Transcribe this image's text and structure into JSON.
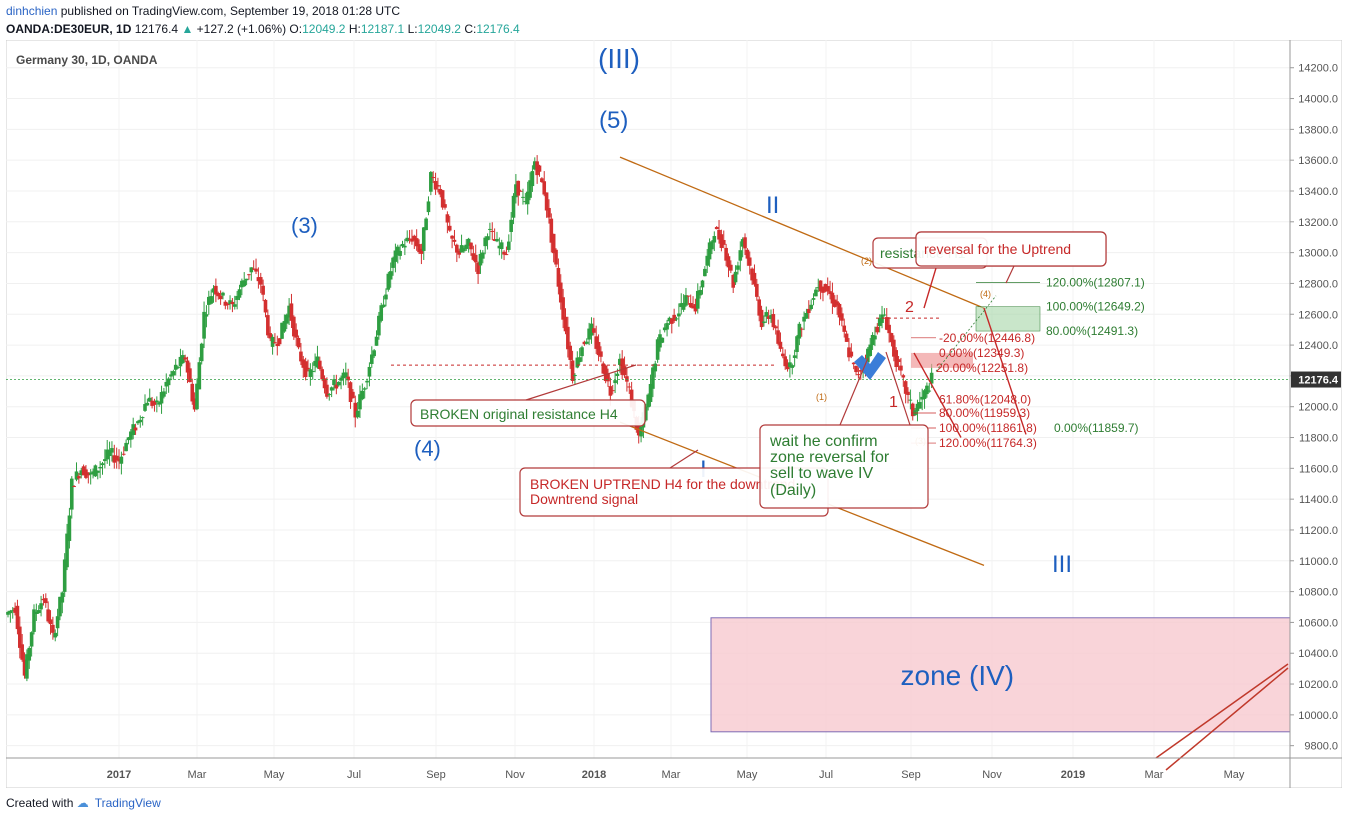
{
  "header": {
    "author": "dinhchien",
    "published": "published on TradingView.com, September 19, 2018 01:28 UTC",
    "symbol_line": "OANDA:DE30EUR, 1D",
    "last": "12176.4",
    "change": "+127.2 (+1.06%)",
    "open_label": "O:",
    "open": "12049.2",
    "high_label": "H:",
    "high": "12187.1",
    "low_label": "L:",
    "low": "12049.2",
    "close_label": "C:",
    "close": "12176.4"
  },
  "footer": {
    "created_with": "Created with",
    "brand": "TradingView"
  },
  "colors": {
    "up": "#26a69a",
    "down": "#ef5350",
    "candle_up": "#2e9e41",
    "candle_down": "#d32f2f",
    "wave_label": "#1e5fbf",
    "trendline": "#c06a13",
    "annotation_red": "#c62828",
    "annotation_green": "#2e7d32"
  },
  "chart_data": {
    "type": "candlestick",
    "title": "Germany 30, 1D, OANDA",
    "y_ticks": [
      "14200.0",
      "14000.0",
      "13800.0",
      "13600.0",
      "13400.0",
      "13200.0",
      "13000.0",
      "12800.0",
      "12600.0",
      "12400.0",
      "12200.0",
      "12000.0",
      "11800.0",
      "11600.0",
      "11400.0",
      "11200.0",
      "11000.0",
      "10800.0",
      "10600.0",
      "10400.0",
      "10200.0",
      "10000.0",
      "9800.0"
    ],
    "ylim": [
      9720,
      14380
    ],
    "x_ticks": [
      "2017",
      "Mar",
      "May",
      "Jul",
      "Sep",
      "Nov",
      "2018",
      "Mar",
      "May",
      "Jul",
      "Sep",
      "Nov",
      "2019",
      "Mar",
      "May"
    ],
    "x_tick_bold": [
      true,
      false,
      false,
      false,
      false,
      false,
      true,
      false,
      false,
      false,
      false,
      false,
      true,
      false,
      false
    ],
    "last_price": "12176.4",
    "price_path": [
      [
        0,
        10650
      ],
      [
        2,
        10700
      ],
      [
        4,
        10250
      ],
      [
        6,
        10650
      ],
      [
        8,
        10760
      ],
      [
        10,
        10500
      ],
      [
        12,
        10800
      ],
      [
        14,
        11500
      ],
      [
        16,
        11600
      ],
      [
        18,
        11550
      ],
      [
        20,
        11620
      ],
      [
        22,
        11700
      ],
      [
        24,
        11650
      ],
      [
        26,
        11800
      ],
      [
        28,
        11900
      ],
      [
        30,
        12050
      ],
      [
        32,
        12000
      ],
      [
        34,
        12150
      ],
      [
        36,
        12250
      ],
      [
        38,
        12320
      ],
      [
        40,
        11980
      ],
      [
        42,
        12600
      ],
      [
        44,
        12780
      ],
      [
        46,
        12700
      ],
      [
        48,
        12650
      ],
      [
        50,
        12800
      ],
      [
        52,
        12900
      ],
      [
        54,
        12800
      ],
      [
        56,
        12400
      ],
      [
        58,
        12450
      ],
      [
        60,
        12650
      ],
      [
        62,
        12350
      ],
      [
        64,
        12200
      ],
      [
        66,
        12300
      ],
      [
        68,
        12100
      ],
      [
        70,
        12150
      ],
      [
        72,
        12200
      ],
      [
        74,
        11950
      ],
      [
        76,
        12150
      ],
      [
        78,
        12400
      ],
      [
        80,
        12700
      ],
      [
        82,
        12950
      ],
      [
        84,
        13050
      ],
      [
        86,
        13100
      ],
      [
        88,
        13000
      ],
      [
        90,
        13500
      ],
      [
        92,
        13400
      ],
      [
        94,
        13100
      ],
      [
        96,
        13000
      ],
      [
        98,
        13050
      ],
      [
        100,
        12900
      ],
      [
        102,
        13150
      ],
      [
        104,
        13050
      ],
      [
        106,
        13000
      ],
      [
        108,
        13450
      ],
      [
        110,
        13300
      ],
      [
        112,
        13596
      ],
      [
        114,
        13400
      ],
      [
        116,
        13000
      ],
      [
        118,
        12600
      ],
      [
        120,
        12200
      ],
      [
        122,
        12400
      ],
      [
        124,
        12500
      ],
      [
        126,
        12300
      ],
      [
        128,
        12100
      ],
      [
        130,
        12300
      ],
      [
        132,
        12100
      ],
      [
        134,
        11800
      ],
      [
        136,
        12050
      ],
      [
        138,
        12400
      ],
      [
        140,
        12550
      ],
      [
        142,
        12600
      ],
      [
        144,
        12700
      ],
      [
        146,
        12650
      ],
      [
        148,
        12900
      ],
      [
        150,
        13150
      ],
      [
        152,
        13050
      ],
      [
        154,
        12800
      ],
      [
        156,
        13100
      ],
      [
        158,
        12850
      ],
      [
        160,
        12550
      ],
      [
        162,
        12600
      ],
      [
        164,
        12350
      ],
      [
        166,
        12250
      ],
      [
        168,
        12500
      ],
      [
        170,
        12650
      ],
      [
        172,
        12800
      ],
      [
        174,
        12750
      ],
      [
        176,
        12650
      ],
      [
        178,
        12400
      ],
      [
        180,
        12200
      ],
      [
        182,
        12300
      ],
      [
        184,
        12500
      ],
      [
        186,
        12600
      ],
      [
        188,
        12350
      ],
      [
        190,
        12150
      ],
      [
        192,
        11960
      ],
      [
        194,
        12050
      ],
      [
        196,
        12176
      ]
    ],
    "wave_labels": [
      {
        "text": "(III)",
        "x": 113,
        "y": 14300,
        "size": 28
      },
      {
        "text": "(5)",
        "x": 113,
        "y": 13900,
        "size": 24
      },
      {
        "text": "(3)",
        "x": 58,
        "y": 13200,
        "size": 22
      },
      {
        "text": "(4)",
        "x": 81,
        "y": 11600,
        "size": 22
      },
      {
        "text": "II",
        "x": 150,
        "y": 13290,
        "size": 24
      },
      {
        "text": "I",
        "x": 131,
        "y": 11620,
        "size": 24
      },
      {
        "text": "III",
        "x": 204,
        "y": 10950,
        "size": 24
      }
    ],
    "small_labels": [
      {
        "text": "(2)",
        "x": 166,
        "y": 12960,
        "color": "#c06a13"
      },
      {
        "text": "(4)",
        "x": 189,
        "y": 12730,
        "color": "#c06a13"
      },
      {
        "text": "(1)",
        "x": 157,
        "y": 12060,
        "color": "#c06a13"
      },
      {
        "text": "(3)",
        "x": 177,
        "y": 11760,
        "color": "#c06a13"
      }
    ],
    "red_labels": [
      {
        "text": "2",
        "x": 174,
        "y": 12650
      },
      {
        "text": "1",
        "x": 171,
        "y": 12020
      }
    ],
    "fib_levels": [
      {
        "text": "120.00%(12807.1)",
        "x": 200,
        "y": 12807,
        "color": "#2e7d32"
      },
      {
        "text": "100.00%(12649.2)",
        "x": 200,
        "y": 12649,
        "color": "#2e7d32"
      },
      {
        "text": "80.00%(12491.3)",
        "x": 200,
        "y": 12491,
        "color": "#2e7d32"
      },
      {
        "text": "-20.00%(12446.8)",
        "x": 180,
        "y": 12447,
        "color": "#c62828"
      },
      {
        "text": "0.00%(12349.3)",
        "x": 180,
        "y": 12349,
        "color": "#c62828"
      },
      {
        "text": "20.00%(12251.8)",
        "x": 180,
        "y": 12252,
        "color": "#c62828"
      },
      {
        "text": "61.80%(12048.0)",
        "x": 180,
        "y": 12048,
        "color": "#c62828"
      },
      {
        "text": "80.00%(11959.3)",
        "x": 180,
        "y": 11959,
        "color": "#c62828"
      },
      {
        "text": "100.00%(11861.8)",
        "x": 178,
        "y": 11862,
        "color": "#c62828"
      },
      {
        "text": "0.00%(11859.7)",
        "x": 202,
        "y": 11862,
        "color": "#2e7d32"
      },
      {
        "text": "120.00%(11764.3)",
        "x": 178,
        "y": 11764,
        "color": "#c62828"
      }
    ],
    "callouts": [
      {
        "text": "reversal for the Uptrend",
        "color": "#c62828"
      },
      {
        "text": "resistance H1",
        "color": "#2e7d32"
      },
      {
        "text": "BROKEN original resistance H4",
        "color": "#2e7d32"
      },
      {
        "text": "BROKEN UPTREND H4 for the downtrend",
        "color": "#c62828"
      },
      {
        "text": "Downtrend signal",
        "color": "#c62828"
      },
      {
        "text": "wait he confirm",
        "color": "#2e7d32"
      },
      {
        "text": "zone reversal for",
        "color": "#2e7d32"
      },
      {
        "text": "sell to wave IV",
        "color": "#2e7d32"
      },
      {
        "text": "(Daily)",
        "color": "#2e7d32"
      }
    ],
    "zone": {
      "label": "zone (IV)",
      "top": 10630,
      "bottom": 9890,
      "x_from": 137,
      "x_to": 999
    },
    "trendlines": [
      {
        "from": [
          113,
          13620
        ],
        "to": [
          192,
          12640
        ],
        "color": "#c06a13"
      },
      {
        "from": [
          116,
          11900
        ],
        "to": [
          190,
          10980
        ],
        "color": "#c06a13"
      }
    ],
    "grid": true,
    "legend": "none"
  }
}
